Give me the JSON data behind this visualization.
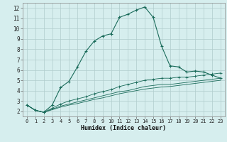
{
  "xlabel": "Humidex (Indice chaleur)",
  "bg_color": "#d6eeee",
  "grid_color": "#b0cccc",
  "line_color": "#1a6b5a",
  "xlim": [
    -0.5,
    23.5
  ],
  "ylim": [
    1.5,
    12.5
  ],
  "xticks": [
    0,
    1,
    2,
    3,
    4,
    5,
    6,
    7,
    8,
    9,
    10,
    11,
    12,
    13,
    14,
    15,
    16,
    17,
    18,
    19,
    20,
    21,
    22,
    23
  ],
  "yticks": [
    2,
    3,
    4,
    5,
    6,
    7,
    8,
    9,
    10,
    11,
    12
  ],
  "line1_x": [
    0,
    1,
    2,
    3,
    4,
    5,
    6,
    7,
    8,
    9,
    10,
    11,
    12,
    13,
    14,
    15,
    16,
    17,
    18,
    19,
    20,
    21,
    22,
    23
  ],
  "line1_y": [
    2.6,
    2.1,
    1.9,
    2.6,
    4.3,
    4.9,
    6.3,
    7.8,
    8.8,
    9.3,
    9.5,
    11.1,
    11.4,
    11.8,
    12.1,
    11.1,
    8.3,
    6.4,
    6.3,
    5.8,
    5.9,
    5.8,
    5.5,
    5.2
  ],
  "line2_x": [
    0,
    1,
    2,
    3,
    4,
    5,
    6,
    7,
    8,
    9,
    10,
    11,
    12,
    13,
    14,
    15,
    16,
    17,
    18,
    19,
    20,
    21,
    22,
    23
  ],
  "line2_y": [
    2.6,
    2.1,
    1.9,
    2.3,
    2.7,
    3.0,
    3.2,
    3.4,
    3.7,
    3.9,
    4.1,
    4.4,
    4.6,
    4.8,
    5.0,
    5.1,
    5.2,
    5.2,
    5.3,
    5.3,
    5.4,
    5.5,
    5.6,
    5.7
  ],
  "line3_x": [
    0,
    1,
    2,
    3,
    4,
    5,
    6,
    7,
    8,
    9,
    10,
    11,
    12,
    13,
    14,
    15,
    16,
    17,
    18,
    19,
    20,
    21,
    22,
    23
  ],
  "line3_y": [
    2.6,
    2.1,
    1.9,
    2.2,
    2.5,
    2.7,
    2.9,
    3.1,
    3.3,
    3.5,
    3.7,
    3.9,
    4.0,
    4.2,
    4.4,
    4.5,
    4.6,
    4.6,
    4.7,
    4.8,
    4.9,
    5.0,
    5.1,
    5.2
  ],
  "line4_x": [
    0,
    1,
    2,
    3,
    4,
    5,
    6,
    7,
    8,
    9,
    10,
    11,
    12,
    13,
    14,
    15,
    16,
    17,
    18,
    19,
    20,
    21,
    22,
    23
  ],
  "line4_y": [
    2.6,
    2.1,
    1.9,
    2.15,
    2.4,
    2.6,
    2.75,
    2.95,
    3.15,
    3.3,
    3.5,
    3.7,
    3.85,
    4.0,
    4.15,
    4.25,
    4.35,
    4.4,
    4.5,
    4.6,
    4.7,
    4.8,
    4.9,
    5.0
  ]
}
